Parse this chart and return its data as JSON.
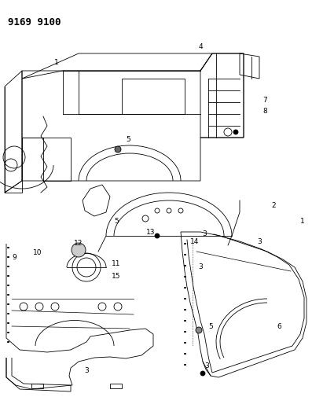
{
  "title": "9169 9100",
  "bg_color": "#ffffff",
  "line_color": "#000000",
  "title_fontsize": 9,
  "title_fontweight": "bold",
  "figsize": [
    4.11,
    5.33
  ],
  "dpi": 100,
  "label_fontsize": 6.5
}
